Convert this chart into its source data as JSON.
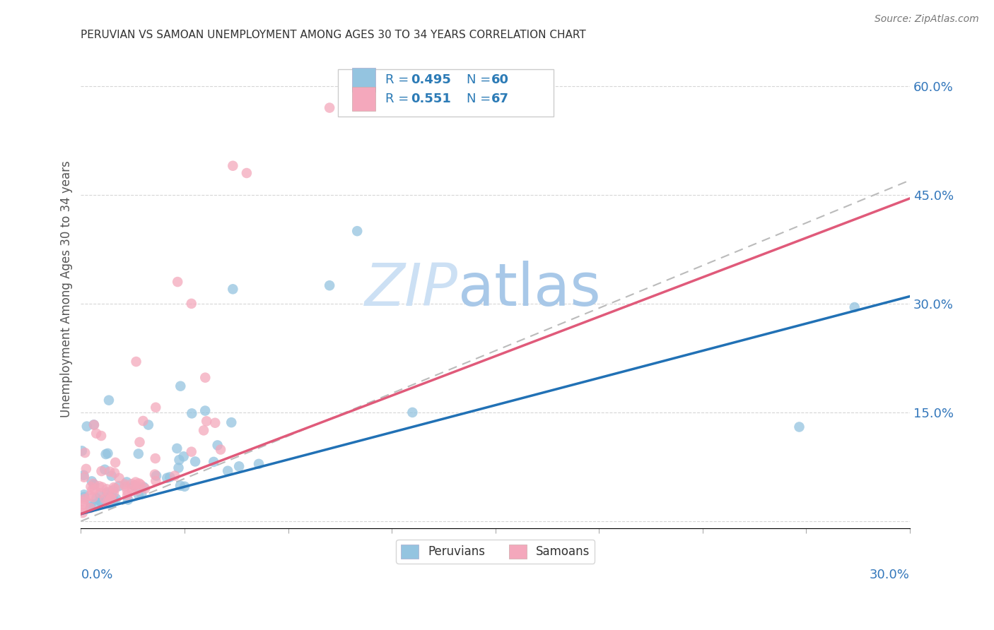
{
  "title": "PERUVIAN VS SAMOAN UNEMPLOYMENT AMONG AGES 30 TO 34 YEARS CORRELATION CHART",
  "source": "Source: ZipAtlas.com",
  "ylabel": "Unemployment Among Ages 30 to 34 years",
  "xmin": 0.0,
  "xmax": 0.3,
  "ymin": -0.01,
  "ymax": 0.65,
  "peruvian_R": 0.495,
  "peruvian_N": 60,
  "samoan_R": 0.551,
  "samoan_N": 67,
  "blue_scatter_color": "#94c4e0",
  "blue_line_color": "#2171b5",
  "pink_scatter_color": "#f4a8bc",
  "pink_line_color": "#e05a7a",
  "legend_text_color": "#2c7bb6",
  "watermark_zip_color": "#d0e4f4",
  "watermark_atlas_color": "#b8d4ec",
  "background_color": "#ffffff",
  "grid_color": "#cccccc",
  "axis_label_color": "#3377bb",
  "right_yticks": [
    0.0,
    0.15,
    0.3,
    0.45,
    0.6
  ],
  "right_yticklabels": [
    "",
    "15.0%",
    "30.0%",
    "45.0%",
    "60.0%"
  ],
  "blue_trend_intercept": 0.0,
  "blue_trend_slope": 1.0,
  "pink_trend_intercept": 0.0,
  "pink_trend_slope": 1.5
}
